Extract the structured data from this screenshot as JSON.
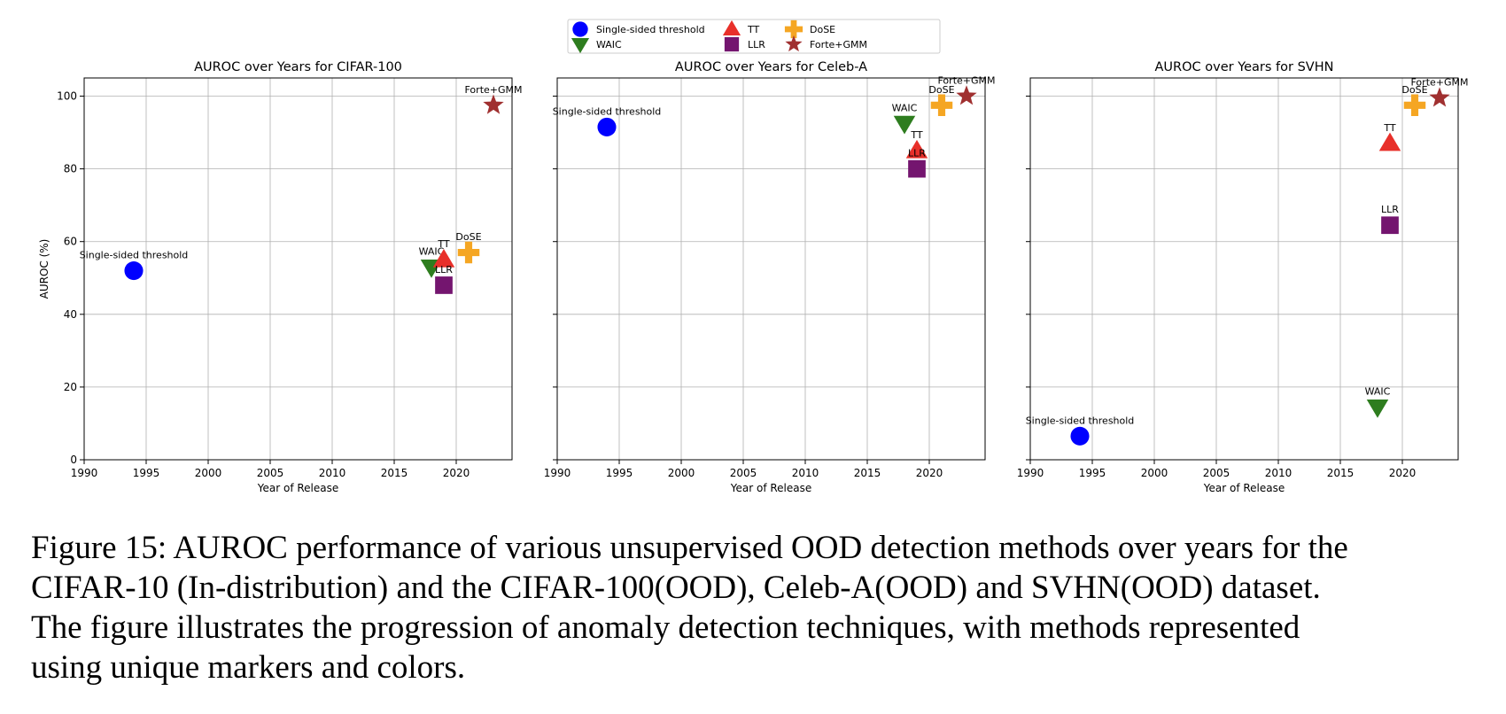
{
  "legend": [
    {
      "label": "Single-sided threshold",
      "marker": "circle",
      "color": "#0000ff"
    },
    {
      "label": "WAIC",
      "marker": "triangle-down",
      "color": "#2e7d1f"
    },
    {
      "label": "TT",
      "marker": "triangle-up",
      "color": "#e8302a"
    },
    {
      "label": "LLR",
      "marker": "square",
      "color": "#74156f"
    },
    {
      "label": "DoSE",
      "marker": "plus",
      "color": "#f5a623"
    },
    {
      "label": "Forte+GMM",
      "marker": "star",
      "color": "#a03030"
    }
  ],
  "chart_data": [
    {
      "type": "scatter",
      "title": "AUROC over Years for CIFAR-100",
      "xlabel": "Year of Release",
      "ylabel": "AUROC (%)",
      "xlim": [
        1990,
        2024.5
      ],
      "ylim": [
        0,
        105
      ],
      "xticks": [
        1990,
        1995,
        2000,
        2005,
        2010,
        2015,
        2020
      ],
      "yticks": [
        0,
        20,
        40,
        60,
        80,
        100
      ],
      "grid": true,
      "points": [
        {
          "method": "Single-sided threshold",
          "year": 1994,
          "auroc": 52
        },
        {
          "method": "WAIC",
          "year": 2018,
          "auroc": 53
        },
        {
          "method": "TT",
          "year": 2019,
          "auroc": 55
        },
        {
          "method": "LLR",
          "year": 2019,
          "auroc": 48
        },
        {
          "method": "DoSE",
          "year": 2021,
          "auroc": 57
        },
        {
          "method": "Forte+GMM",
          "year": 2023,
          "auroc": 97.5
        }
      ]
    },
    {
      "type": "scatter",
      "title": "AUROC over Years for Celeb-A",
      "xlabel": "Year of Release",
      "ylabel": "",
      "xlim": [
        1990,
        2024.5
      ],
      "ylim": [
        0,
        105
      ],
      "xticks": [
        1990,
        1995,
        2000,
        2005,
        2010,
        2015,
        2020
      ],
      "yticks": [
        0,
        20,
        40,
        60,
        80,
        100
      ],
      "grid": true,
      "points": [
        {
          "method": "Single-sided threshold",
          "year": 1994,
          "auroc": 91.5
        },
        {
          "method": "WAIC",
          "year": 2018,
          "auroc": 92.5
        },
        {
          "method": "TT",
          "year": 2019,
          "auroc": 85
        },
        {
          "method": "LLR",
          "year": 2019,
          "auroc": 80
        },
        {
          "method": "DoSE",
          "year": 2021,
          "auroc": 97.5
        },
        {
          "method": "Forte+GMM",
          "year": 2023,
          "auroc": 100
        }
      ]
    },
    {
      "type": "scatter",
      "title": "AUROC over Years for SVHN",
      "xlabel": "Year of Release",
      "ylabel": "",
      "xlim": [
        1990,
        2024.5
      ],
      "ylim": [
        0,
        105
      ],
      "xticks": [
        1990,
        1995,
        2000,
        2005,
        2010,
        2015,
        2020
      ],
      "yticks": [
        0,
        20,
        40,
        60,
        80,
        100
      ],
      "grid": true,
      "points": [
        {
          "method": "Single-sided threshold",
          "year": 1994,
          "auroc": 6.5
        },
        {
          "method": "WAIC",
          "year": 2018,
          "auroc": 14.5
        },
        {
          "method": "TT",
          "year": 2019,
          "auroc": 87
        },
        {
          "method": "LLR",
          "year": 2019,
          "auroc": 64.5
        },
        {
          "method": "DoSE",
          "year": 2021,
          "auroc": 97.5
        },
        {
          "method": "Forte+GMM",
          "year": 2023,
          "auroc": 99.5
        }
      ]
    }
  ],
  "caption": {
    "lines": [
      "Figure 15: AUROC performance of various unsupervised OOD detection methods over years for the",
      "CIFAR-10 (In-distribution) and the CIFAR-100(OOD), Celeb-A(OOD) and SVHN(OOD) dataset.",
      "The figure illustrates the progression of anomaly detection techniques, with methods represented",
      "using unique markers and colors."
    ]
  }
}
